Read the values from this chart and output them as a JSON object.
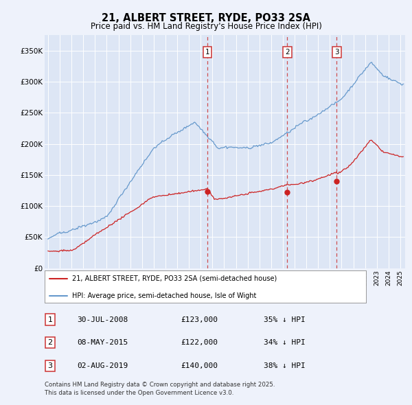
{
  "title": "21, ALBERT STREET, RYDE, PO33 2SA",
  "subtitle": "Price paid vs. HM Land Registry's House Price Index (HPI)",
  "background_color": "#eef2fb",
  "plot_bg_color": "#dde6f5",
  "ylim": [
    0,
    375000
  ],
  "yticks": [
    0,
    50000,
    100000,
    150000,
    200000,
    250000,
    300000,
    350000
  ],
  "ytick_labels": [
    "£0",
    "£50K",
    "£100K",
    "£150K",
    "£200K",
    "£250K",
    "£300K",
    "£350K"
  ],
  "hpi_color": "#6699cc",
  "price_color": "#cc2222",
  "sale_labels": [
    "1",
    "2",
    "3"
  ],
  "sale_info": [
    {
      "label": "1",
      "date": "30-JUL-2008",
      "price": "£123,000",
      "pct": "35% ↓ HPI"
    },
    {
      "label": "2",
      "date": "08-MAY-2015",
      "price": "£122,000",
      "pct": "34% ↓ HPI"
    },
    {
      "label": "3",
      "date": "02-AUG-2019",
      "price": "£140,000",
      "pct": "38% ↓ HPI"
    }
  ],
  "legend_line1": "21, ALBERT STREET, RYDE, PO33 2SA (semi-detached house)",
  "legend_line2": "HPI: Average price, semi-detached house, Isle of Wight",
  "footnote": "Contains HM Land Registry data © Crown copyright and database right 2025.\nThis data is licensed under the Open Government Licence v3.0."
}
